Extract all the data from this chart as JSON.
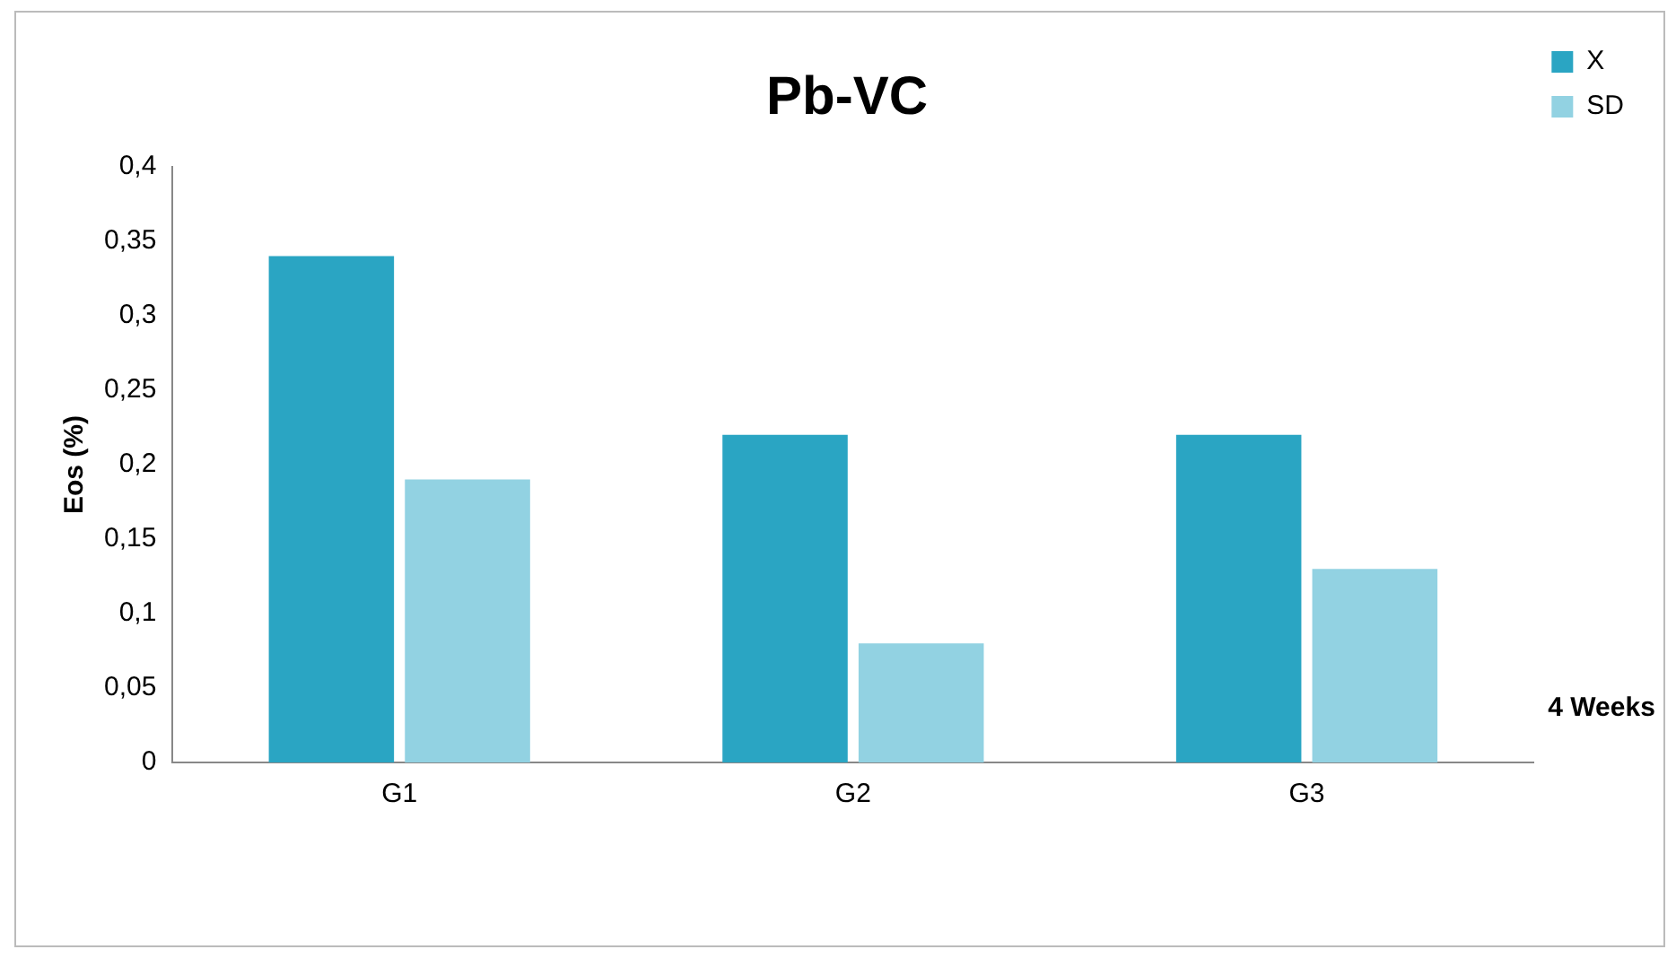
{
  "chart_data": {
    "type": "bar",
    "title": "Pb-VC",
    "ylabel": "Eos (%)",
    "xlabel": "4 Weeks",
    "categories": [
      "G1",
      "G2",
      "G3"
    ],
    "series": [
      {
        "name": "X",
        "color": "#2aa5c3",
        "values": [
          0.34,
          0.22,
          0.22
        ]
      },
      {
        "name": "SD",
        "color": "#92d2e2",
        "values": [
          0.19,
          0.08,
          0.13
        ]
      }
    ],
    "ylim": [
      0,
      0.4
    ],
    "yticks": [
      0,
      {
        "value": 0.05,
        "label": "0,05"
      },
      {
        "value": 0.1,
        "label": "0,1"
      },
      {
        "value": 0.15,
        "label": "0,15"
      },
      {
        "value": 0.2,
        "label": "0,2"
      },
      {
        "value": 0.25,
        "label": "0,25"
      },
      {
        "value": 0.3,
        "label": "0,3"
      },
      {
        "value": 0.35,
        "label": "0,35"
      },
      {
        "value": 0.4,
        "label": "0,4"
      }
    ],
    "grid": false,
    "legend": "top right"
  }
}
